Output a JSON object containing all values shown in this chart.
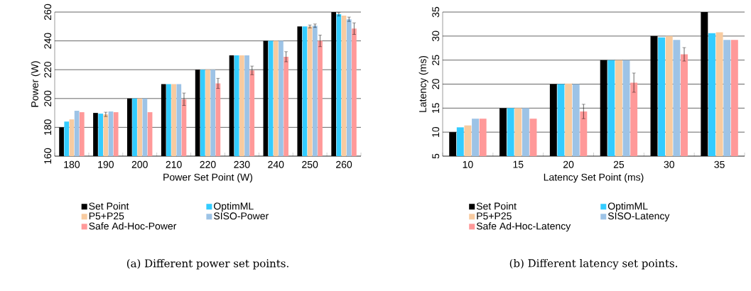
{
  "chart_data": [
    {
      "type": "bar",
      "xlabel": "Power Set Point (W)",
      "ylabel": "Power (W)",
      "categories": [
        "180",
        "190",
        "200",
        "210",
        "220",
        "230",
        "240",
        "250",
        "260"
      ],
      "ylim": [
        160,
        260
      ],
      "yticks": [
        160,
        180,
        200,
        220,
        240,
        260
      ],
      "grid": "y",
      "legend": "bottom",
      "annotations": [
        "(a) Different power set points."
      ],
      "series": [
        {
          "name": "Set Point",
          "color": "#000000",
          "values": [
            180,
            190,
            200,
            210,
            220,
            230,
            240,
            250,
            260
          ]
        },
        {
          "name": "OptimML",
          "color": "#33ccff",
          "values": [
            184,
            189.5,
            200,
            210,
            220,
            230,
            240,
            250,
            258.5
          ],
          "errors": [
            null,
            null,
            null,
            null,
            null,
            null,
            null,
            null,
            1.2
          ]
        },
        {
          "name": "P5+P25",
          "color": "#f8cba0",
          "values": [
            185.5,
            189,
            200,
            210,
            220,
            230,
            240,
            250,
            257.5
          ],
          "errors": [
            null,
            1.5,
            null,
            null,
            null,
            null,
            null,
            1,
            null
          ]
        },
        {
          "name": "SISO-Power",
          "color": "#9dc3e6",
          "values": [
            191.5,
            191,
            200,
            210,
            220,
            230,
            240,
            250.5,
            255
          ],
          "errors": [
            null,
            null,
            null,
            null,
            null,
            null,
            null,
            1.2,
            1.5
          ]
        },
        {
          "name": "Safe Ad-Hoc-Power",
          "color": "#ff9999",
          "values": [
            190.5,
            190.5,
            190.5,
            199.5,
            210.5,
            219.5,
            229,
            240,
            248.5
          ],
          "errors": [
            null,
            null,
            null,
            4.3,
            3.5,
            3,
            3.5,
            4,
            4
          ]
        }
      ]
    },
    {
      "type": "bar",
      "xlabel": "Latency Set Point (ms)",
      "ylabel": "Latency (ms)",
      "categories": [
        "10",
        "15",
        "20",
        "25",
        "30",
        "35"
      ],
      "ylim": [
        5,
        35
      ],
      "yticks": [
        5,
        10,
        15,
        20,
        25,
        30,
        35
      ],
      "grid": "y",
      "legend": "bottom",
      "annotations": [
        "(b) Different latency set points."
      ],
      "series": [
        {
          "name": "Set Point",
          "color": "#000000",
          "values": [
            10,
            15,
            20,
            25,
            30,
            35
          ]
        },
        {
          "name": "OptimML",
          "color": "#33ccff",
          "values": [
            11,
            15,
            20,
            25,
            29.7,
            30.6
          ]
        },
        {
          "name": "P5+P25",
          "color": "#f8cba0",
          "values": [
            11.4,
            15,
            20.1,
            25,
            30,
            30.8
          ]
        },
        {
          "name": "SISO-Latency",
          "color": "#9dc3e6",
          "values": [
            12.8,
            15,
            20,
            25,
            29.2,
            29.2
          ]
        },
        {
          "name": "Safe Ad-Hoc-Latency",
          "color": "#ff9999",
          "values": [
            12.8,
            12.8,
            14.3,
            20.3,
            26.2,
            29.2
          ],
          "errors": [
            null,
            null,
            1.5,
            2,
            1.4,
            null
          ]
        }
      ]
    }
  ]
}
